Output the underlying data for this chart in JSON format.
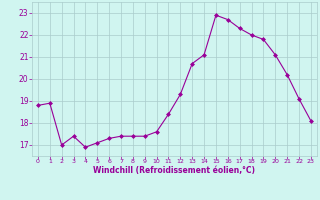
{
  "x": [
    0,
    1,
    2,
    3,
    4,
    5,
    6,
    7,
    8,
    9,
    10,
    11,
    12,
    13,
    14,
    15,
    16,
    17,
    18,
    19,
    20,
    21,
    22,
    23
  ],
  "y": [
    18.8,
    18.9,
    17.0,
    17.4,
    16.9,
    17.1,
    17.3,
    17.4,
    17.4,
    17.4,
    17.6,
    18.4,
    19.3,
    20.7,
    21.1,
    22.9,
    22.7,
    22.3,
    22.0,
    21.8,
    21.1,
    20.2,
    19.1,
    18.1
  ],
  "line_color": "#990099",
  "marker": "D",
  "marker_size": 2.0,
  "bg_color": "#d0f5f0",
  "grid_color": "#aacccc",
  "xlabel": "Windchill (Refroidissement éolien,°C)",
  "xlabel_color": "#990099",
  "tick_color": "#990099",
  "ylim": [
    16.5,
    23.5
  ],
  "xlim": [
    -0.5,
    23.5
  ],
  "yticks": [
    17,
    18,
    19,
    20,
    21,
    22,
    23
  ],
  "xticks": [
    0,
    1,
    2,
    3,
    4,
    5,
    6,
    7,
    8,
    9,
    10,
    11,
    12,
    13,
    14,
    15,
    16,
    17,
    18,
    19,
    20,
    21,
    22,
    23
  ]
}
